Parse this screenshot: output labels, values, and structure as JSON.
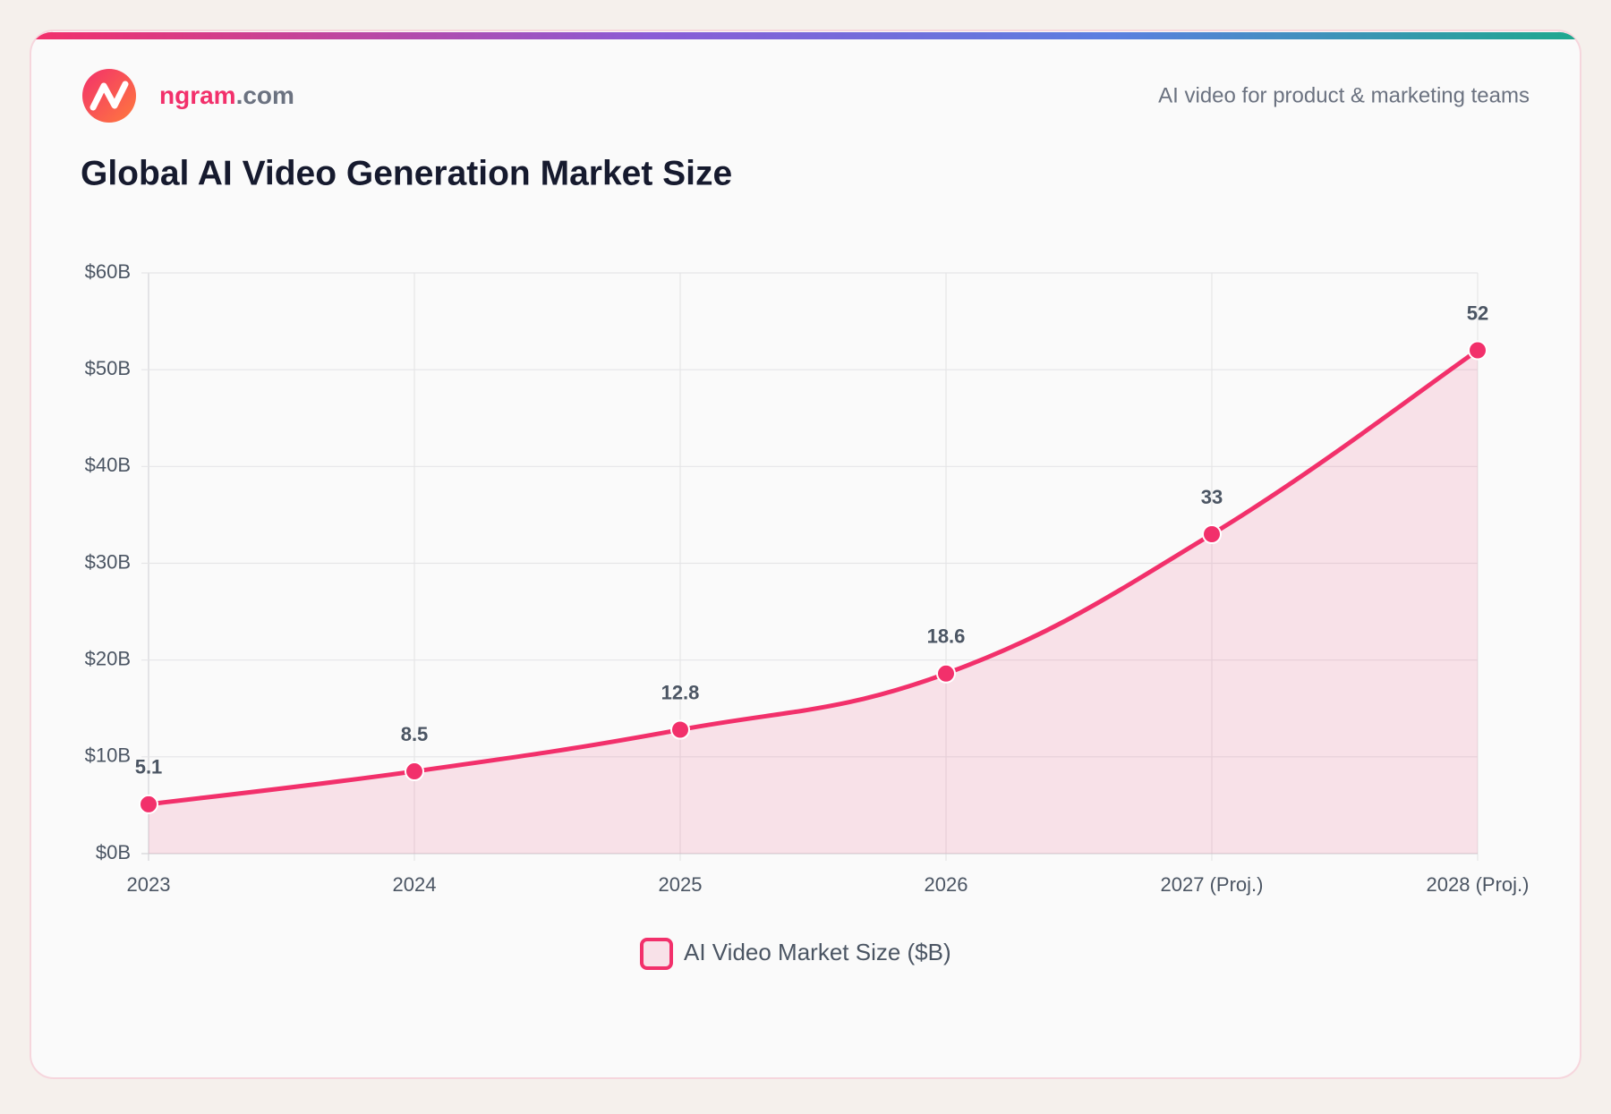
{
  "header": {
    "brand_name": "ngram",
    "brand_domain": ".com",
    "tagline": "AI video for product & marketing teams"
  },
  "chart_data": {
    "type": "line",
    "title": "Global AI Video Generation Market Size",
    "categories": [
      "2023",
      "2024",
      "2025",
      "2026",
      "2027 (Proj.)",
      "2028 (Proj.)"
    ],
    "series": [
      {
        "name": "AI Video Market Size ($B)",
        "color": "#f2306b",
        "values": [
          5.1,
          8.5,
          12.8,
          18.6,
          33,
          52
        ]
      }
    ],
    "ylim": [
      0,
      60
    ],
    "yticks": [
      {
        "value": 0,
        "label": "$0B"
      },
      {
        "value": 10,
        "label": "$10B"
      },
      {
        "value": 20,
        "label": "$20B"
      },
      {
        "value": 30,
        "label": "$30B"
      },
      {
        "value": 40,
        "label": "$40B"
      },
      {
        "value": 50,
        "label": "$50B"
      },
      {
        "value": 60,
        "label": "$60B"
      }
    ],
    "grid": true,
    "fill": true,
    "legend": "bottom"
  }
}
